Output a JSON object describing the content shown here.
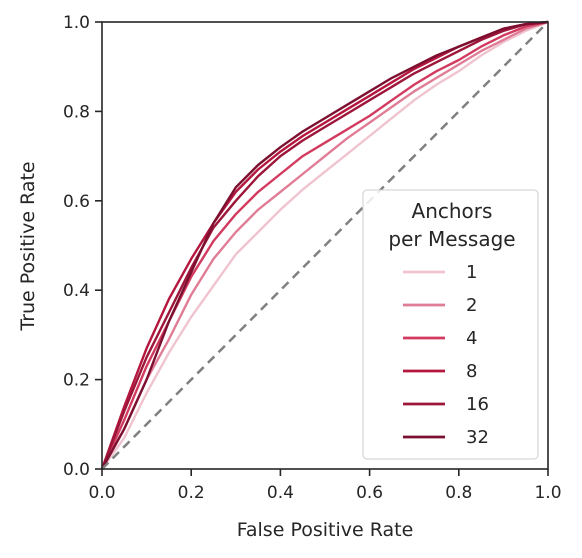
{
  "chart_data": {
    "type": "line",
    "xlabel": "False Positive Rate",
    "ylabel": "True Positive Rate",
    "xlim": [
      0,
      1
    ],
    "ylim": [
      0,
      1
    ],
    "xticks": [
      "0.0",
      "0.2",
      "0.4",
      "0.6",
      "0.8",
      "1.0"
    ],
    "yticks": [
      "0.0",
      "0.2",
      "0.4",
      "0.6",
      "0.8",
      "1.0"
    ],
    "grid": false,
    "legend": {
      "title_line1": "Anchors",
      "title_line2": "per Message",
      "placement": "lower-right"
    },
    "reference_line": {
      "style": "dashed",
      "color": "#808080",
      "x": [
        0,
        1
      ],
      "y": [
        0,
        1
      ]
    },
    "series": [
      {
        "name": "1",
        "color": "#f0c4cf",
        "x": [
          0,
          0.05,
          0.1,
          0.15,
          0.2,
          0.25,
          0.3,
          0.35,
          0.4,
          0.45,
          0.5,
          0.55,
          0.6,
          0.65,
          0.7,
          0.75,
          0.8,
          0.85,
          0.9,
          0.95,
          1
        ],
        "y": [
          0,
          0.07,
          0.17,
          0.26,
          0.34,
          0.41,
          0.48,
          0.53,
          0.58,
          0.625,
          0.665,
          0.705,
          0.745,
          0.785,
          0.825,
          0.86,
          0.89,
          0.925,
          0.955,
          0.98,
          1
        ]
      },
      {
        "name": "2",
        "color": "#e07c95",
        "x": [
          0,
          0.05,
          0.1,
          0.15,
          0.2,
          0.25,
          0.3,
          0.35,
          0.4,
          0.45,
          0.5,
          0.55,
          0.6,
          0.65,
          0.7,
          0.75,
          0.8,
          0.85,
          0.9,
          0.95,
          1
        ],
        "y": [
          0,
          0.09,
          0.2,
          0.29,
          0.39,
          0.47,
          0.53,
          0.58,
          0.62,
          0.66,
          0.7,
          0.74,
          0.775,
          0.81,
          0.845,
          0.875,
          0.905,
          0.935,
          0.96,
          0.985,
          1
        ]
      },
      {
        "name": "4",
        "color": "#d23b5f",
        "x": [
          0,
          0.05,
          0.1,
          0.15,
          0.2,
          0.25,
          0.3,
          0.35,
          0.4,
          0.45,
          0.5,
          0.55,
          0.6,
          0.65,
          0.7,
          0.75,
          0.8,
          0.85,
          0.9,
          0.95,
          1
        ],
        "y": [
          0,
          0.11,
          0.23,
          0.33,
          0.43,
          0.51,
          0.57,
          0.62,
          0.66,
          0.7,
          0.73,
          0.76,
          0.79,
          0.825,
          0.86,
          0.89,
          0.915,
          0.945,
          0.97,
          0.99,
          1
        ]
      },
      {
        "name": "8",
        "color": "#b4163d",
        "x": [
          0,
          0.05,
          0.1,
          0.15,
          0.2,
          0.25,
          0.3,
          0.35,
          0.4,
          0.45,
          0.5,
          0.55,
          0.6,
          0.65,
          0.7,
          0.75,
          0.8,
          0.85,
          0.9,
          0.95,
          1
        ],
        "y": [
          0,
          0.14,
          0.27,
          0.38,
          0.47,
          0.55,
          0.62,
          0.67,
          0.71,
          0.745,
          0.775,
          0.805,
          0.835,
          0.865,
          0.895,
          0.92,
          0.945,
          0.965,
          0.985,
          0.995,
          1
        ]
      },
      {
        "name": "16",
        "color": "#9d1539",
        "x": [
          0,
          0.05,
          0.1,
          0.15,
          0.2,
          0.25,
          0.3,
          0.35,
          0.4,
          0.45,
          0.5,
          0.55,
          0.6,
          0.65,
          0.7,
          0.75,
          0.8,
          0.85,
          0.9,
          0.95,
          1
        ],
        "y": [
          0,
          0.13,
          0.25,
          0.35,
          0.45,
          0.54,
          0.6,
          0.655,
          0.7,
          0.735,
          0.765,
          0.795,
          0.825,
          0.855,
          0.885,
          0.91,
          0.935,
          0.96,
          0.98,
          0.995,
          1
        ]
      },
      {
        "name": "32",
        "color": "#7d1030",
        "x": [
          0,
          0.05,
          0.1,
          0.15,
          0.2,
          0.25,
          0.3,
          0.35,
          0.4,
          0.45,
          0.5,
          0.55,
          0.6,
          0.65,
          0.7,
          0.75,
          0.8,
          0.85,
          0.9,
          0.95,
          1
        ],
        "y": [
          0,
          0.09,
          0.2,
          0.33,
          0.44,
          0.55,
          0.63,
          0.68,
          0.72,
          0.755,
          0.785,
          0.815,
          0.845,
          0.875,
          0.9,
          0.925,
          0.945,
          0.965,
          0.985,
          0.995,
          1
        ]
      }
    ]
  }
}
